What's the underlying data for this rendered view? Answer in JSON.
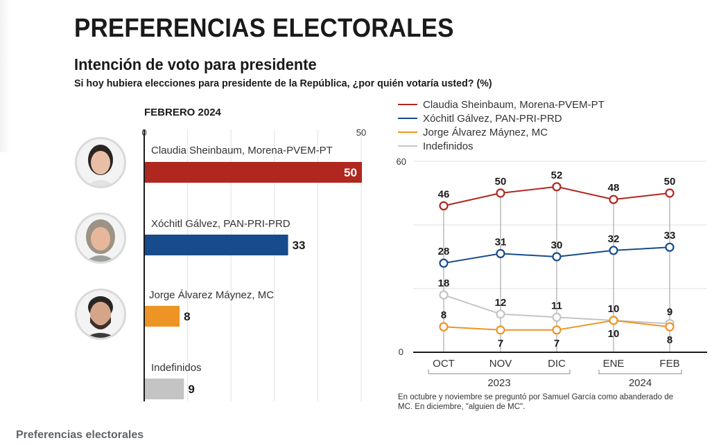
{
  "header": {
    "title": "PREFERENCIAS ELECTORALES",
    "subtitle": "Intención de voto para presidente",
    "question": "Si hoy hubiera elecciones para presidente de la República, ¿por quién votaría usted? (%)"
  },
  "caption": "Preferencias electorales",
  "colors": {
    "sheinbaum": "#b0271f",
    "galvez": "#174b8c",
    "maynez": "#ee9424",
    "indefinidos": "#c4c4c4"
  },
  "chart_data": [
    {
      "type": "bar",
      "orientation": "horizontal",
      "title": "FEBRERO 2024",
      "xlim": [
        0,
        50
      ],
      "tick_labels": [
        "0",
        "50"
      ],
      "grid": true,
      "categories": [
        "Claudia Sheinbaum, Morena-PVEM-PT",
        "Xóchitl Gálvez, PAN-PRI-PRD",
        "Jorge Álvarez Máynez, MC",
        "Indefinidos"
      ],
      "values": [
        50,
        33,
        8,
        9
      ],
      "colors": [
        "#b0271f",
        "#174b8c",
        "#ee9424",
        "#c4c4c4"
      ],
      "avatars": [
        "sheinbaum-photo",
        "galvez-photo",
        "maynez-photo",
        null
      ]
    },
    {
      "type": "line",
      "x": [
        "OCT",
        "NOV",
        "DIC",
        "ENE",
        "FEB"
      ],
      "year_groups": [
        {
          "label": "2023",
          "months": [
            "OCT",
            "NOV",
            "DIC"
          ]
        },
        {
          "label": "2024",
          "months": [
            "ENE",
            "FEB"
          ]
        }
      ],
      "ylim": [
        0,
        60
      ],
      "ytick_labels": [
        "0",
        "60"
      ],
      "grid_values": [
        0,
        20,
        40,
        60
      ],
      "legend_position": "top-left",
      "series": [
        {
          "name": "Claudia Sheinbaum, Morena-PVEM-PT",
          "color": "#b0271f",
          "values": [
            46,
            50,
            52,
            48,
            50
          ],
          "label_pos": [
            "above",
            "above",
            "above",
            "above",
            "above"
          ]
        },
        {
          "name": "Xóchitl Gálvez, PAN-PRI-PRD",
          "color": "#174b8c",
          "values": [
            28,
            31,
            30,
            32,
            33
          ],
          "label_pos": [
            "above",
            "above",
            "above",
            "above",
            "above"
          ]
        },
        {
          "name": "Jorge Álvarez Máynez, MC",
          "color": "#ee9424",
          "values": [
            8,
            7,
            7,
            10,
            8
          ],
          "label_pos": [
            "above",
            "below",
            "below",
            "below",
            "below"
          ]
        },
        {
          "name": "Indefinidos",
          "color": "#c4c4c4",
          "values": [
            18,
            12,
            11,
            10,
            9
          ],
          "label_pos": [
            "above",
            "above",
            "above",
            "above",
            "above"
          ]
        }
      ],
      "footnote": "En octubre y noviembre se preguntó por Samuel García como abanderado de MC. En diciembre, \"alguien de MC\"."
    }
  ]
}
